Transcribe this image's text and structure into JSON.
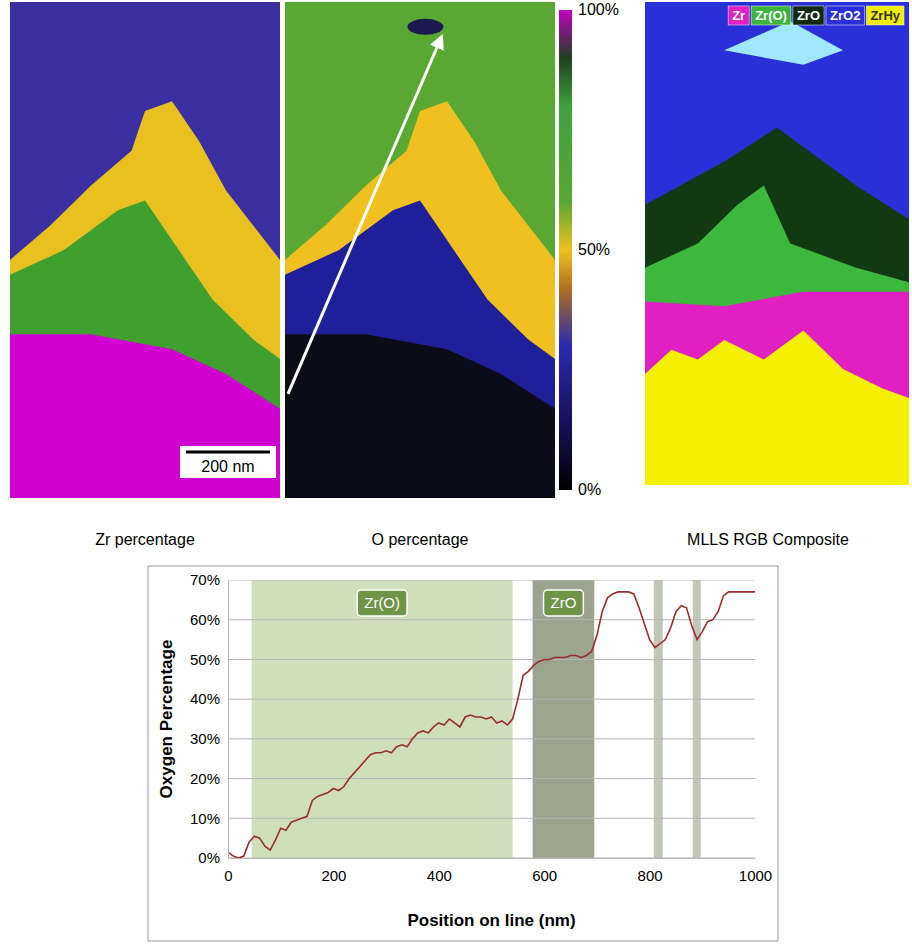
{
  "chart_data": {
    "type": "line",
    "x_label": "Position on line (nm)",
    "y_label": "Oxygen Percentage",
    "x": [
      0,
      10,
      20,
      30,
      40,
      50,
      60,
      70,
      80,
      90,
      100,
      110,
      120,
      130,
      140,
      150,
      160,
      170,
      180,
      190,
      200,
      210,
      220,
      230,
      240,
      250,
      260,
      270,
      280,
      290,
      300,
      310,
      320,
      330,
      340,
      350,
      360,
      370,
      380,
      390,
      400,
      410,
      420,
      430,
      440,
      450,
      460,
      470,
      480,
      490,
      500,
      510,
      520,
      530,
      540,
      550,
      560,
      570,
      580,
      590,
      600,
      610,
      620,
      630,
      640,
      650,
      660,
      670,
      680,
      690,
      700,
      710,
      720,
      730,
      740,
      750,
      760,
      770,
      780,
      790,
      800,
      810,
      820,
      830,
      840,
      850,
      860,
      870,
      880,
      890,
      900,
      910,
      920,
      930,
      940,
      950,
      960,
      970,
      980,
      990,
      1000
    ],
    "values": [
      1.5,
      0.5,
      0,
      0.5,
      4,
      5.5,
      5,
      3,
      2,
      4.5,
      7.5,
      7,
      9,
      9.5,
      10,
      10.5,
      14.5,
      15.5,
      16,
      16.5,
      17.5,
      17,
      18,
      20,
      21.5,
      23,
      24.5,
      26,
      26.5,
      26.5,
      27,
      26.5,
      28,
      28.5,
      28,
      30,
      31.5,
      32,
      31.5,
      33,
      34,
      33.5,
      35,
      34,
      33,
      35.5,
      36,
      35.5,
      35.5,
      35,
      35.5,
      34,
      34.5,
      33.5,
      35,
      40,
      46,
      47,
      48.5,
      49.5,
      50,
      50,
      50.5,
      50.5,
      50.5,
      51,
      51,
      50.5,
      51,
      52,
      56,
      62,
      65.5,
      66.5,
      67,
      67,
      67,
      66.5,
      63,
      59,
      55,
      53,
      54,
      55,
      58,
      62,
      63.5,
      63,
      58.5,
      55,
      57,
      59.5,
      60,
      62,
      66,
      67,
      67,
      67,
      67,
      67,
      67
    ],
    "color": "#9b2d2d",
    "xlim": [
      0,
      1000
    ],
    "xticks": [
      0,
      200,
      400,
      600,
      800,
      1000
    ],
    "ylim": [
      0,
      70
    ],
    "yticks": [
      {
        "value": 0,
        "label": "0%"
      },
      {
        "value": 10,
        "label": "10%"
      },
      {
        "value": 20,
        "label": "20%"
      },
      {
        "value": 30,
        "label": "30%"
      },
      {
        "value": 40,
        "label": "40%"
      },
      {
        "value": 50,
        "label": "50%"
      },
      {
        "value": 60,
        "label": "60%"
      },
      {
        "value": 70,
        "label": "70%"
      }
    ],
    "grid": true,
    "bands": [
      {
        "label": "Zr(O)",
        "x0": 45,
        "x1": 540,
        "color": "#cfdfbd"
      },
      {
        "label": "ZrO",
        "x0": 578,
        "x1": 695,
        "color": "#9aa48f"
      },
      {
        "x0": 808,
        "x1": 825,
        "color": "#c2c8b8"
      },
      {
        "x0": 882,
        "x1": 897,
        "color": "#c2c8b8"
      }
    ]
  },
  "panels": [
    {
      "caption": "Zr percentage",
      "scale_bar": "200 nm"
    },
    {
      "caption": "O percentage",
      "colorbar": {
        "range": [
          0,
          100
        ],
        "ticks": [
          {
            "value": 100,
            "label": "100%"
          },
          {
            "value": 50,
            "label": "50%"
          },
          {
            "value": 0,
            "label": "0%"
          }
        ]
      }
    },
    {
      "caption": "MLLS RGB Composite",
      "legend": [
        {
          "label": "Zr",
          "color": "#e020c0"
        },
        {
          "label": "Zr(O)",
          "color": "#3cb43c"
        },
        {
          "label": "ZrO",
          "color": "#0f2a0f"
        },
        {
          "label": "ZrO2",
          "color": "#2a30d8"
        },
        {
          "label": "ZrHy",
          "color": "#f2ec00"
        }
      ]
    }
  ]
}
